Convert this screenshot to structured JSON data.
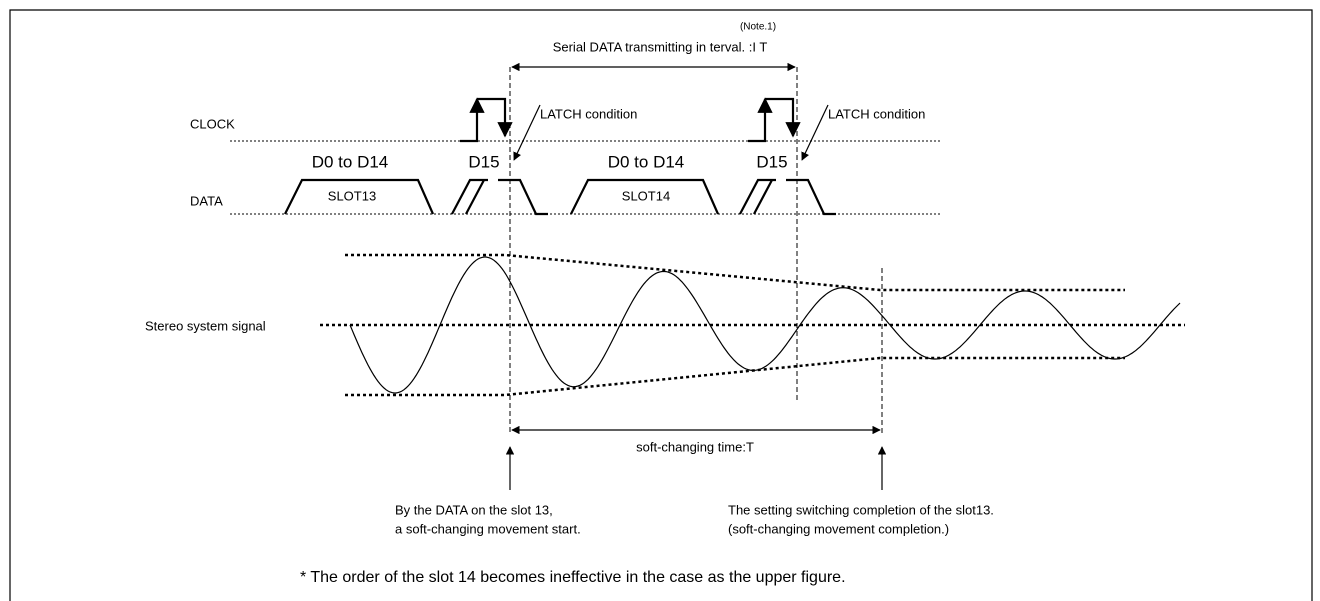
{
  "top": {
    "note": "(Note.1)",
    "interval_label": "Serial DATA transmitting in terval. :I T"
  },
  "clock": {
    "label": "CLOCK",
    "latch_labels": [
      "LATCH condition",
      "LATCH condition"
    ]
  },
  "data": {
    "label": "DATA",
    "groups": [
      "D0 to D14",
      "D15",
      "D0 to D14",
      "D15"
    ],
    "slots": [
      "SLOT13",
      "SLOT14"
    ]
  },
  "signal": {
    "label": "Stereo system signal",
    "soft_time_label": "soft-changing time:T"
  },
  "notes": {
    "start": [
      "By the DATA on the slot 13,",
      "a soft-changing movement start."
    ],
    "end": [
      "The setting switching completion of the slot13.",
      "(soft-changing movement completion.)"
    ],
    "footnote": "* The order of the slot 14 becomes ineffective in the case as the upper figure."
  }
}
